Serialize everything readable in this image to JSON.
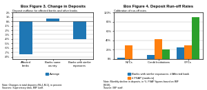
{
  "chart_data": [
    {
      "type": "bar",
      "title": "Box Figure 3. Change in Deposits",
      "subtitle": "Deposit outflows for affected banks and other banks",
      "categories": [
        "Affected\nbanks",
        "Banks same\ncountry",
        "Banks with similar\nexposures"
      ],
      "series": [
        {
          "name": "Average",
          "values": [
            -7.5,
            0.7,
            -4.0
          ]
        }
      ],
      "ylim": [
        -8.5,
        2.0
      ],
      "yticks": [
        {
          "value": -8,
          "label": "-8%"
        },
        {
          "value": -7,
          "label": "-7%"
        },
        {
          "value": -6,
          "label": "-6%"
        },
        {
          "value": -5,
          "label": "-5%"
        },
        {
          "value": -4,
          "label": "-4%"
        },
        {
          "value": -3,
          "label": "-3%"
        },
        {
          "value": -2,
          "label": "-2%"
        },
        {
          "value": -1,
          "label": "-1%"
        },
        {
          "value": 0,
          "label": "0%"
        },
        {
          "value": 1,
          "label": "1%"
        },
        {
          "value": 2,
          "label": "2%"
        }
      ],
      "grid": true,
      "note": "Note: Changes in total deposits (M+1,M-1), in percent.\nSources: Supervisory data, IMF staff."
    },
    {
      "type": "bar",
      "title": "Box Figure 4. Deposit Run-off Rates",
      "subtitle": "Calibration of run-off rates",
      "categories": [
        "NFCs",
        "Credit Institutions",
        "OFCs"
      ],
      "series": [
        {
          "name": "Banks with similar exposures: # Affected bank",
          "values": [
            2,
            8,
            25
          ]
        },
        {
          "name": "# FSAP (medium)",
          "values": [
            30,
            42,
            30
          ]
        },
        {
          "values": [
            0,
            20,
            90
          ]
        }
      ],
      "ylim": [
        0,
        100
      ],
      "yticks": [
        {
          "value": 0,
          "label": "0%"
        },
        {
          "value": 20,
          "label": "20%"
        },
        {
          "value": 40,
          "label": "40%"
        },
        {
          "value": 60,
          "label": "60%"
        },
        {
          "value": 80,
          "label": "80%"
        },
        {
          "value": 100,
          "label": "100%"
        }
      ],
      "grid": true,
      "note": "Note: Monthly decline in deposits, in %. FSAP figures based on IMF\n(2019).\nSource: IMF staff."
    }
  ]
}
